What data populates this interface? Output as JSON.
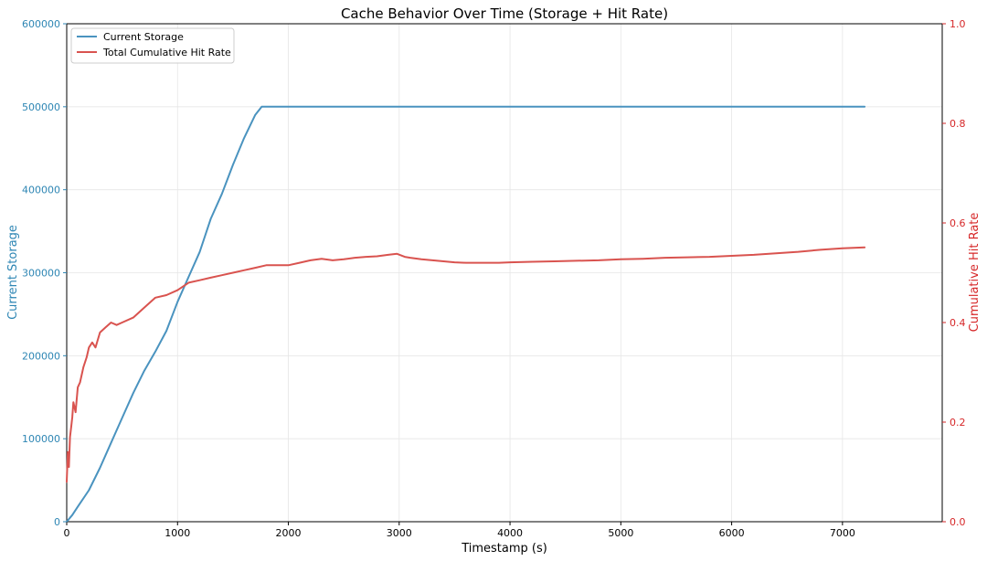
{
  "chart_data": {
    "type": "line",
    "title": "Cache Behavior Over Time (Storage + Hit Rate)",
    "xlabel": "Timestamp (s)",
    "ylabel_left": "Current Storage",
    "ylabel_right": "Cumulative Hit Rate",
    "xlim": [
      0,
      7900
    ],
    "ylim_left": [
      0,
      600000
    ],
    "ylim_right": [
      0,
      1.0
    ],
    "x_ticks": [
      "0",
      "1000",
      "2000",
      "3000",
      "4000",
      "5000",
      "6000",
      "7000"
    ],
    "x_tick_values": [
      0,
      1000,
      2000,
      3000,
      4000,
      5000,
      6000,
      7000
    ],
    "y_left_ticks": [
      "0",
      "100000",
      "200000",
      "300000",
      "400000",
      "500000",
      "600000"
    ],
    "y_left_tick_values": [
      0,
      100000,
      200000,
      300000,
      400000,
      500000,
      600000
    ],
    "y_right_ticks": [
      "0.0",
      "0.2",
      "0.4",
      "0.6",
      "0.8",
      "1.0"
    ],
    "y_right_tick_values": [
      0,
      0.2,
      0.4,
      0.6,
      0.8,
      1.0
    ],
    "grid": true,
    "legend_position": "top-left",
    "colors": {
      "left_axis": "#2e86b4",
      "right_axis": "#d62728",
      "storage": "#4a93bf",
      "hitrate": "#d9534f"
    },
    "series": [
      {
        "name": "Current Storage",
        "axis": "left",
        "x": [
          0,
          50,
          100,
          200,
          300,
          400,
          500,
          600,
          700,
          800,
          900,
          1000,
          1100,
          1200,
          1300,
          1400,
          1500,
          1600,
          1700,
          1760,
          1800,
          2000,
          3000,
          4000,
          5000,
          6000,
          7000,
          7200
        ],
        "y": [
          0,
          8000,
          18000,
          38000,
          65000,
          95000,
          125000,
          155000,
          182000,
          205000,
          230000,
          265000,
          295000,
          325000,
          365000,
          395000,
          430000,
          462000,
          490000,
          500000,
          500000,
          500000,
          500000,
          500000,
          500000,
          500000,
          500000,
          500000
        ]
      },
      {
        "name": "Total Cumulative Hit Rate",
        "axis": "right",
        "x": [
          0,
          10,
          20,
          30,
          40,
          50,
          60,
          80,
          100,
          120,
          150,
          180,
          200,
          230,
          260,
          300,
          350,
          400,
          450,
          500,
          600,
          700,
          800,
          900,
          1000,
          1100,
          1200,
          1300,
          1400,
          1500,
          1600,
          1700,
          1800,
          1900,
          2000,
          2100,
          2200,
          2300,
          2400,
          2500,
          2600,
          2700,
          2800,
          2900,
          2980,
          3050,
          3100,
          3200,
          3300,
          3400,
          3500,
          3600,
          3700,
          3800,
          3900,
          4000,
          4200,
          4400,
          4600,
          4800,
          5000,
          5200,
          5400,
          5600,
          5800,
          6000,
          6200,
          6400,
          6600,
          6800,
          7000,
          7200
        ],
        "y": [
          0.08,
          0.14,
          0.11,
          0.17,
          0.19,
          0.21,
          0.24,
          0.22,
          0.27,
          0.28,
          0.31,
          0.33,
          0.35,
          0.36,
          0.35,
          0.38,
          0.39,
          0.4,
          0.395,
          0.4,
          0.41,
          0.43,
          0.45,
          0.455,
          0.465,
          0.48,
          0.485,
          0.49,
          0.495,
          0.5,
          0.505,
          0.51,
          0.515,
          0.515,
          0.515,
          0.52,
          0.525,
          0.528,
          0.525,
          0.527,
          0.53,
          0.532,
          0.533,
          0.536,
          0.538,
          0.532,
          0.53,
          0.527,
          0.525,
          0.523,
          0.521,
          0.52,
          0.52,
          0.52,
          0.52,
          0.521,
          0.522,
          0.523,
          0.524,
          0.525,
          0.527,
          0.528,
          0.53,
          0.531,
          0.532,
          0.534,
          0.536,
          0.539,
          0.542,
          0.546,
          0.549,
          0.551
        ]
      }
    ]
  }
}
